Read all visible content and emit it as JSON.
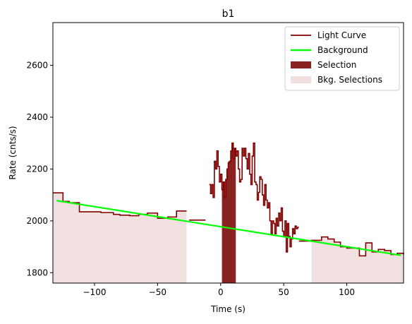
{
  "chart_data": {
    "type": "line",
    "title": "b1",
    "xlabel": "Time (s)",
    "ylabel": "Rate (cnts/s)",
    "xlim": [
      -133,
      145
    ],
    "ylim": [
      1760,
      2765
    ],
    "xticks": [
      -100,
      -50,
      0,
      50,
      100
    ],
    "yticks": [
      1800,
      2000,
      2200,
      2400,
      2600
    ],
    "grid": false,
    "legend_position": "top-right",
    "legend": [
      {
        "label": "Light Curve",
        "kind": "line",
        "color": "#800000"
      },
      {
        "label": "Background",
        "kind": "line",
        "color": "#00ff00"
      },
      {
        "label": "Selection",
        "kind": "patch",
        "color": "#8b2222"
      },
      {
        "label": "Bkg. Selections",
        "kind": "patch",
        "color": "#f0e0e0"
      }
    ],
    "background_fit": {
      "x": [
        -130,
        143
      ],
      "y": [
        2078,
        1867
      ],
      "color": "#00ff00"
    },
    "selection": {
      "x_start": 1,
      "x_end": 12,
      "color": "#8b2222"
    },
    "bkg_selections": [
      {
        "x_start": -133,
        "x_end": -27
      },
      {
        "x_start": 72,
        "x_end": 145
      }
    ],
    "light_curve_segments": [
      {
        "x": [
          -133,
          -125,
          -120,
          -112,
          -100,
          -95,
          -85,
          -80,
          -72,
          -65,
          -58,
          -50,
          -42,
          -35,
          -27
        ],
        "y": [
          2108,
          2075,
          2070,
          2035,
          2035,
          2032,
          2025,
          2022,
          2020,
          2025,
          2030,
          2010,
          2015,
          2038,
          2038
        ]
      },
      {
        "x": [
          -25,
          -18,
          -12
        ],
        "y": [
          2003,
          2003,
          2003
        ]
      },
      {
        "x": [
          -9,
          -8,
          -7,
          -6,
          -5,
          -4,
          -3,
          -2,
          -1,
          0,
          1,
          2,
          3,
          4,
          5,
          6,
          7,
          8,
          9,
          10,
          11,
          12,
          13,
          14,
          15,
          16,
          17,
          18,
          19,
          20,
          21,
          22,
          23,
          24,
          25,
          26,
          27,
          28,
          29,
          30,
          31,
          32,
          33,
          34,
          35,
          36,
          37,
          38,
          39,
          40,
          41,
          42,
          43,
          44,
          45,
          46,
          47,
          48,
          49,
          50,
          51,
          52,
          53,
          54,
          55,
          56,
          57,
          58,
          59,
          60,
          61,
          62
        ],
        "y": [
          2140,
          2105,
          2140,
          2090,
          2230,
          2200,
          2270,
          2210,
          2150,
          2180,
          2120,
          2150,
          2090,
          2160,
          2200,
          2225,
          2230,
          2270,
          2300,
          2240,
          2280,
          2250,
          2270,
          2200,
          2150,
          2160,
          2280,
          2250,
          2280,
          2240,
          2200,
          2260,
          2180,
          2140,
          2250,
          2300,
          2150,
          2140,
          2080,
          2110,
          2170,
          2160,
          2100,
          2060,
          2140,
          2080,
          2050,
          2070,
          2000,
          1950,
          2000,
          1990,
          1950,
          2010,
          1980,
          2030,
          2000,
          2050,
          1960,
          1940,
          2000,
          1880,
          1990,
          1940,
          1900,
          1930,
          1970,
          1950,
          1980,
          1970,
          1975,
          1975
        ]
      },
      {
        "x": [
          62,
          72,
          80,
          85,
          90,
          95,
          100,
          105,
          110,
          115,
          120,
          125,
          130,
          135,
          140,
          145
        ],
        "y": [
          1922,
          1925,
          1938,
          1930,
          1918,
          1900,
          1895,
          1895,
          1865,
          1915,
          1880,
          1890,
          1885,
          1870,
          1875,
          1870
        ]
      }
    ],
    "colors": {
      "light_curve": "#800000",
      "selection": "#8b2222",
      "bkg_selection": "#f0e0e0",
      "background": "#00ff00"
    }
  }
}
